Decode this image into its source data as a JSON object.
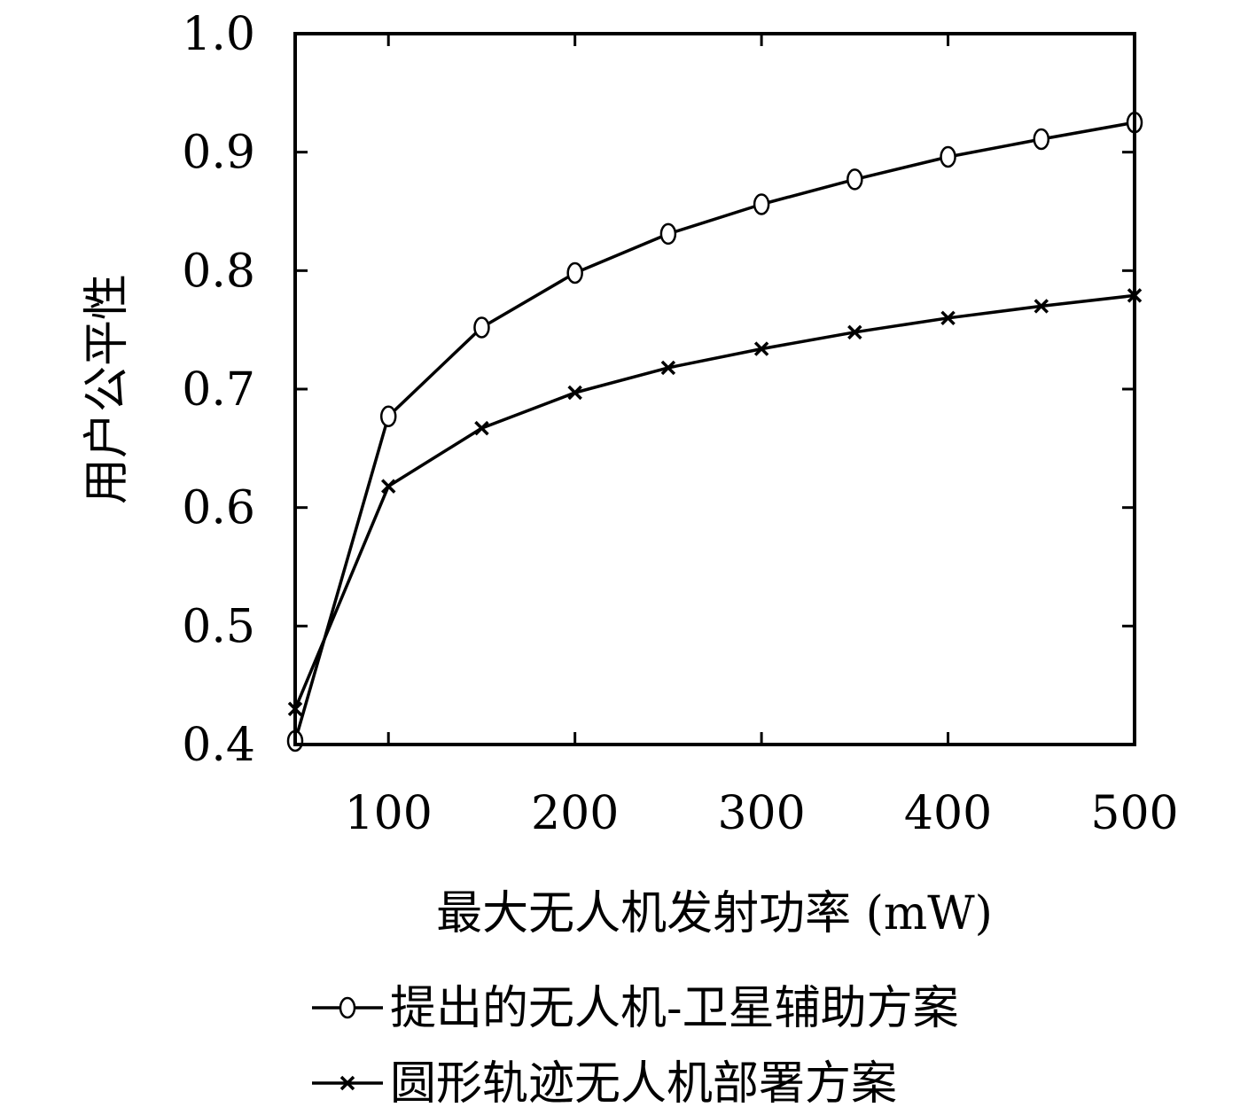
{
  "chart_data": {
    "type": "line",
    "title": "",
    "xlabel": "最大无人机发射功率 (mW)",
    "ylabel": "用户公平性",
    "xlim": [
      50,
      500
    ],
    "ylim": [
      0.4,
      1.0
    ],
    "xticks": [
      100,
      200,
      300,
      400,
      500
    ],
    "yticks": [
      0.4,
      0.5,
      0.6,
      0.7,
      0.8,
      0.9,
      1.0
    ],
    "xtick_labels": [
      "100",
      "200",
      "300",
      "400",
      "500"
    ],
    "ytick_labels": [
      "0.4",
      "0.5",
      "0.6",
      "0.7",
      "0.8",
      "0.9",
      "1.0"
    ],
    "grid": false,
    "legend_position": "bottom",
    "x": [
      50,
      100,
      150,
      200,
      250,
      300,
      350,
      400,
      450,
      500
    ],
    "series": [
      {
        "name": "提出的无人机-卫星辅助方案",
        "marker": "circle",
        "values": [
          0.403,
          0.677,
          0.752,
          0.798,
          0.831,
          0.856,
          0.877,
          0.896,
          0.911,
          0.925
        ]
      },
      {
        "name": "圆形轨迹无人机部署方案",
        "marker": "x",
        "values": [
          0.43,
          0.618,
          0.667,
          0.697,
          0.718,
          0.734,
          0.748,
          0.76,
          0.77,
          0.779
        ]
      }
    ],
    "colors": {
      "line": "#000000",
      "axes": "#000000",
      "background": "#ffffff"
    }
  }
}
